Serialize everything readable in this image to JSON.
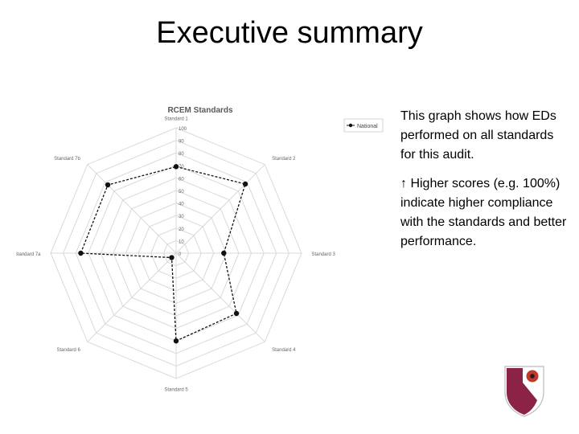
{
  "slide": {
    "title": "Executive summary",
    "description_1": "This graph shows how EDs performed on all standards for this audit.",
    "description_2": "↑ Higher scores (e.g. 100%) indicate higher compliance with the standards and better performance."
  },
  "chart_data": {
    "type": "radar",
    "title": "RCEM Standards",
    "axes": [
      "Standard 1",
      "Standard 2",
      "Standard 3",
      "Standard 4",
      "Standard 5",
      "Standard 6",
      "Standard 7a",
      "Standard 7b"
    ],
    "ylim": [
      0,
      100
    ],
    "ticks": [
      "0",
      "10",
      "20",
      "30",
      "40",
      "50",
      "60",
      "70",
      "80",
      "90",
      "100"
    ],
    "series": [
      {
        "name": "National",
        "values": [
          69,
          78,
          38,
          68,
          70,
          5,
          76,
          77
        ]
      }
    ],
    "legend": "top-right",
    "grid": true,
    "colors": {
      "series": "#111111",
      "grid": "#d9d9d9",
      "axis_text": "#666666",
      "title": "#595959"
    }
  },
  "logo": {
    "name": "crest-logo"
  }
}
